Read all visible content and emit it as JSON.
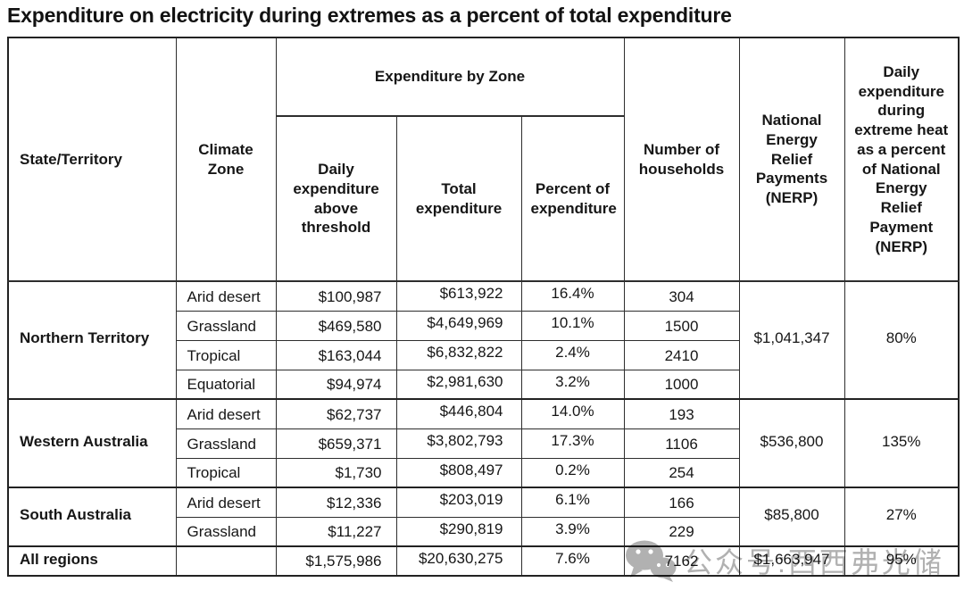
{
  "title": "Expenditure on electricity during extremes as a percent of total expenditure",
  "watermark": {
    "icon": "wechat-icon",
    "text": "公众号:西西弗光储"
  },
  "chart_data": {
    "type": "table",
    "title": "Expenditure on electricity during extremes as a percent of total expenditure",
    "headers": {
      "state": "State/Territory",
      "climate_zone": "Climate Zone",
      "zone_group": "Expenditure by Zone",
      "daily": "Daily expenditure above threshold",
      "total": "Total expenditure",
      "percent": "Percent of expenditure",
      "households": "Number of households",
      "nerp": "National Energy Relief Payments (NERP)",
      "daily_pct_nerp": "Daily expenditure during extreme heat as a percent of National Energy Relief Payment (NERP)"
    },
    "groups": [
      {
        "state": "Northern Territory",
        "nerp": "$1,041,347",
        "daily_pct": "80%",
        "rows": [
          {
            "zone": "Arid desert",
            "daily": "$100,987",
            "total": "$613,922",
            "percent": "16.4%",
            "households": "304"
          },
          {
            "zone": "Grassland",
            "daily": "$469,580",
            "total": "$4,649,969",
            "percent": "10.1%",
            "households": "1500"
          },
          {
            "zone": "Tropical",
            "daily": "$163,044",
            "total": "$6,832,822",
            "percent": "2.4%",
            "households": "2410"
          },
          {
            "zone": "Equatorial",
            "daily": "$94,974",
            "total": "$2,981,630",
            "percent": "3.2%",
            "households": "1000"
          }
        ]
      },
      {
        "state": "Western Australia",
        "nerp": "$536,800",
        "daily_pct": "135%",
        "rows": [
          {
            "zone": "Arid desert",
            "daily": "$62,737",
            "total": "$446,804",
            "percent": "14.0%",
            "households": "193"
          },
          {
            "zone": "Grassland",
            "daily": "$659,371",
            "total": "$3,802,793",
            "percent": "17.3%",
            "households": "1106"
          },
          {
            "zone": "Tropical",
            "daily": "$1,730",
            "total": "$808,497",
            "percent": "0.2%",
            "households": "254"
          }
        ]
      },
      {
        "state": "South Australia",
        "nerp": "$85,800",
        "daily_pct": "27%",
        "rows": [
          {
            "zone": "Arid desert",
            "daily": "$12,336",
            "total": "$203,019",
            "percent": "6.1%",
            "households": "166"
          },
          {
            "zone": "Grassland",
            "daily": "$11,227",
            "total": "$290,819",
            "percent": "3.9%",
            "households": "229"
          }
        ]
      }
    ],
    "totals": {
      "state": "All regions",
      "zone": "",
      "daily": "$1,575,986",
      "total": "$20,630,275",
      "percent": "7.6%",
      "households": "7162",
      "nerp": "$1,663,947",
      "daily_pct": "95%"
    }
  }
}
